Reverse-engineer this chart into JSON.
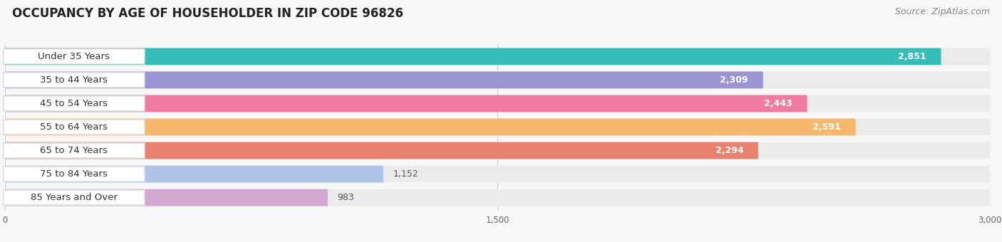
{
  "title": "OCCUPANCY BY AGE OF HOUSEHOLDER IN ZIP CODE 96826",
  "source": "Source: ZipAtlas.com",
  "categories": [
    "Under 35 Years",
    "35 to 44 Years",
    "45 to 54 Years",
    "55 to 64 Years",
    "65 to 74 Years",
    "75 to 84 Years",
    "85 Years and Over"
  ],
  "values": [
    2851,
    2309,
    2443,
    2591,
    2294,
    1152,
    983
  ],
  "bar_colors": [
    "#35bdb8",
    "#9b96d3",
    "#f07aa0",
    "#f5b86c",
    "#e8826f",
    "#adc3e8",
    "#d3a8d3"
  ],
  "value_bg_colors": [
    "#35bdb8",
    "#9b96d3",
    "#f07aa0",
    "#f5b86c",
    "#e8826f",
    "#444444",
    "#444444"
  ],
  "xlim_min": 0,
  "xlim_max": 3000,
  "xticks": [
    0,
    1500,
    3000
  ],
  "xtick_labels": [
    "0",
    "1,500",
    "3,000"
  ],
  "title_fontsize": 12,
  "source_fontsize": 9,
  "label_fontsize": 9.5,
  "value_fontsize": 9,
  "background_color": "#f7f7f7",
  "bar_bg_color": "#ebebeb",
  "value_threshold": 1500
}
